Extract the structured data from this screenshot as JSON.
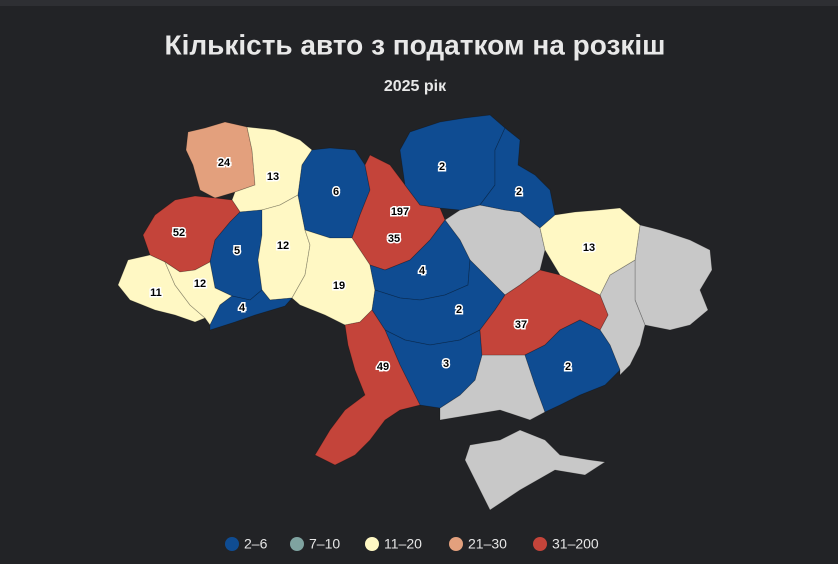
{
  "chart_data": {
    "type": "choropleth",
    "title": "Кількість авто з податком на розкіш",
    "subtitle": "2025 рік",
    "values": [
      24,
      13,
      52,
      5,
      12,
      11,
      12,
      4,
      6,
      197,
      35,
      19,
      2,
      2,
      4,
      2,
      3,
      49,
      37,
      2,
      13
    ],
    "no_data_color": "#c8c8c8",
    "legend": [
      {
        "label": "2–6",
        "color": "#0f4c92",
        "range": [
          2,
          6
        ]
      },
      {
        "label": "7–10",
        "color": "#7fa3a0",
        "range": [
          7,
          10
        ]
      },
      {
        "label": "11–20",
        "color": "#fff8c4",
        "range": [
          11,
          20
        ]
      },
      {
        "label": "21–30",
        "color": "#e3a07d",
        "range": [
          21,
          30
        ]
      },
      {
        "label": "31–200",
        "color": "#c4443a",
        "range": [
          31,
          200
        ]
      }
    ]
  }
}
